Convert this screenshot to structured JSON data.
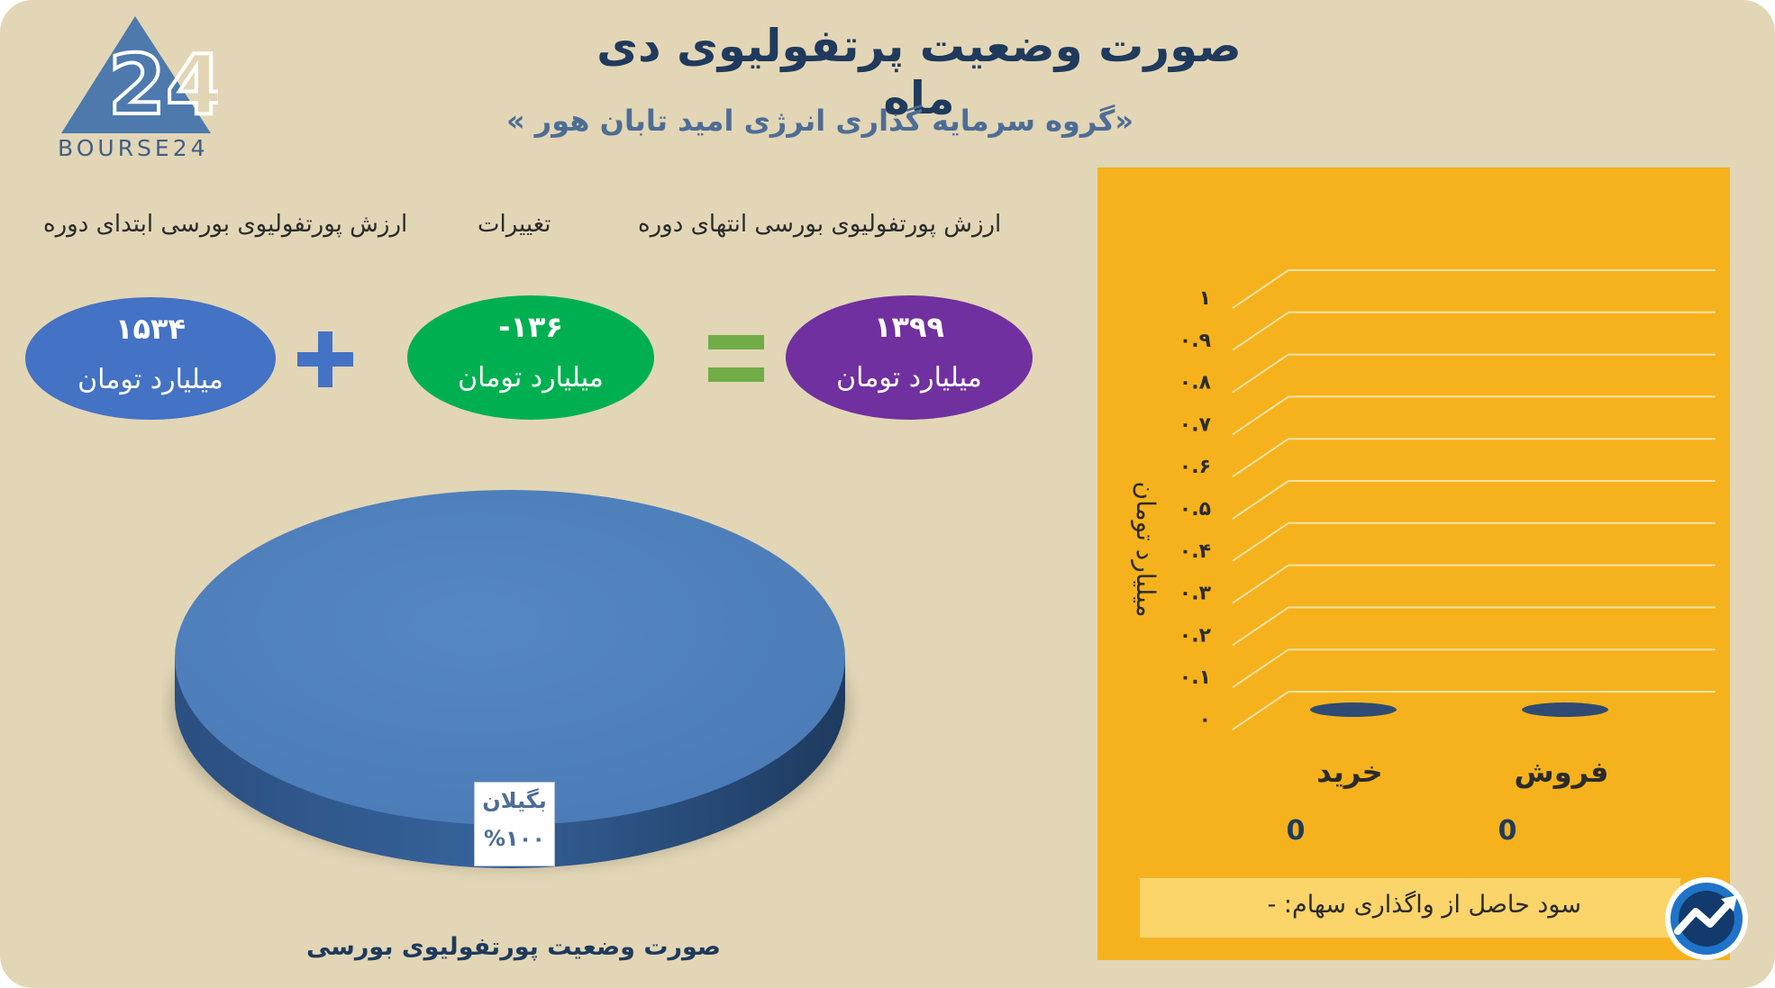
{
  "brand": {
    "logo_text": "BOURSE24",
    "logo_mark": "24"
  },
  "header": {
    "title": "صورت وضعیت پرتفولیوی دی ماه",
    "subtitle": "«گروه سرمایه گذاری انرژی امید تابان هور »"
  },
  "summary": {
    "start": {
      "label": "ارزش پورتفولیوی بورسی ابتدای دوره",
      "value": "۱۵۳۴",
      "unit": "میلیارد تومان",
      "color": "#4472c4"
    },
    "change": {
      "label": "تغییرات",
      "value": "-۱۳۶",
      "unit": "میلیارد تومان",
      "color": "#00b050"
    },
    "end": {
      "label": "ارزش پورتفولیوی بورسی انتهای دوره",
      "value": "۱۳۹۹",
      "unit": "میلیارد تومان",
      "color": "#7030a0"
    },
    "plus_color": "#4472c4",
    "equals_color": "#70ad47"
  },
  "chart_data": [
    {
      "type": "pie",
      "title": "صورت وضعیت پورتفولیوی بورسی",
      "slices": [
        {
          "label": "بگیلان",
          "value": 100,
          "display": "%۱۰۰",
          "color": "#4f81bd"
        }
      ]
    },
    {
      "type": "bar",
      "categories": [
        "خرید",
        "فروش"
      ],
      "values": [
        0,
        0
      ],
      "value_labels": [
        "0",
        "0"
      ],
      "ylabel": "میلیارد تومان",
      "ylim": [
        0,
        1
      ],
      "yticks": [
        "۰",
        "۰.۱",
        "۰.۲",
        "۰.۳",
        "۰.۴",
        "۰.۵",
        "۰.۶",
        "۰.۷",
        "۰.۸",
        "۰.۹",
        "۱"
      ],
      "grid": true,
      "bar_color": "#2f4b73",
      "background": "#f5b21c"
    }
  ],
  "footer": {
    "profit_text": "سود حاصل از واگذاری سهام: -"
  }
}
